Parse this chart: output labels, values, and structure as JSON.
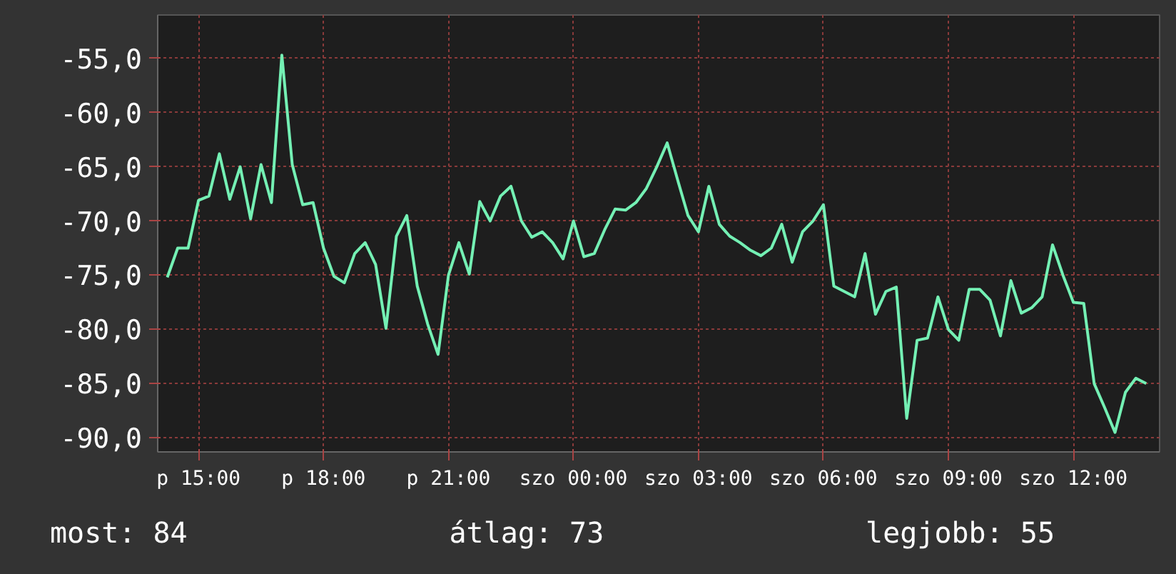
{
  "chart_data": {
    "type": "line",
    "line_style": "solid",
    "marker": "none",
    "grid": true,
    "ylim": [
      -91.3,
      -51
    ],
    "yticks": [
      {
        "value": -55,
        "label": "-55,0"
      },
      {
        "value": -60,
        "label": "-60,0"
      },
      {
        "value": -65,
        "label": "-65,0"
      },
      {
        "value": -70,
        "label": "-70,0"
      },
      {
        "value": -75,
        "label": "-75,0"
      },
      {
        "value": -80,
        "label": "-80,0"
      },
      {
        "value": -85,
        "label": "-85,0"
      },
      {
        "value": -90,
        "label": "-90,0"
      }
    ],
    "categories": [
      null,
      null,
      null,
      "p 15:00",
      null,
      null,
      null,
      null,
      null,
      null,
      null,
      null,
      null,
      null,
      null,
      "p 18:00",
      null,
      null,
      null,
      null,
      null,
      null,
      null,
      null,
      null,
      null,
      null,
      "p 21:00",
      null,
      null,
      null,
      null,
      null,
      null,
      null,
      null,
      null,
      null,
      null,
      "szo 00:00",
      null,
      null,
      null,
      null,
      null,
      null,
      null,
      null,
      null,
      null,
      null,
      "szo 03:00",
      null,
      null,
      null,
      null,
      null,
      null,
      null,
      null,
      null,
      null,
      null,
      "szo 06:00",
      null,
      null,
      null,
      null,
      null,
      null,
      null,
      null,
      null,
      null,
      null,
      "szo 09:00",
      null,
      null,
      null,
      null,
      null,
      null,
      null,
      null,
      null,
      null,
      null,
      "szo 12:00",
      null,
      null,
      null,
      null,
      null,
      null,
      null
    ],
    "annotations": [
      "most: 84",
      "átlag: 73",
      "legjobb: 55"
    ],
    "series": [
      {
        "color": "#74f0b4",
        "values": [
          -75.2,
          -72.5,
          -72.5,
          -68.1,
          -67.7,
          -63.8,
          -68.0,
          -65.0,
          -69.8,
          -64.8,
          -68.3,
          -54.7,
          -64.8,
          -68.5,
          -68.3,
          -72.5,
          -75.1,
          -75.7,
          -73.0,
          -72.0,
          -74.0,
          -79.9,
          -71.4,
          -69.5,
          -76.0,
          -79.5,
          -82.3,
          -75.0,
          -72.0,
          -74.9,
          -68.2,
          -70.0,
          -67.7,
          -66.8,
          -70.0,
          -71.5,
          -71.0,
          -72.0,
          -73.5,
          -70.0,
          -73.3,
          -73.0,
          -70.8,
          -68.9,
          -69.0,
          -68.3,
          -67.0,
          -65.0,
          -62.8,
          -66.2,
          -69.5,
          -71.0,
          -66.8,
          -70.3,
          -71.4,
          -72.0,
          -72.7,
          -73.2,
          -72.5,
          -70.3,
          -73.8,
          -71.0,
          -70.0,
          -68.5,
          -76.0,
          -76.5,
          -77.0,
          -73.0,
          -78.6,
          -76.5,
          -76.1,
          -88.2,
          -81.0,
          -80.8,
          -77.0,
          -80.0,
          -81.0,
          -76.3,
          -76.3,
          -77.3,
          -80.6,
          -75.5,
          -78.5,
          -78.0,
          -77.0,
          -72.2,
          -75.0,
          -77.5,
          -77.6,
          -85.0,
          -87.2,
          -89.5,
          -85.8,
          -84.5,
          -85.0
        ]
      }
    ]
  }
}
